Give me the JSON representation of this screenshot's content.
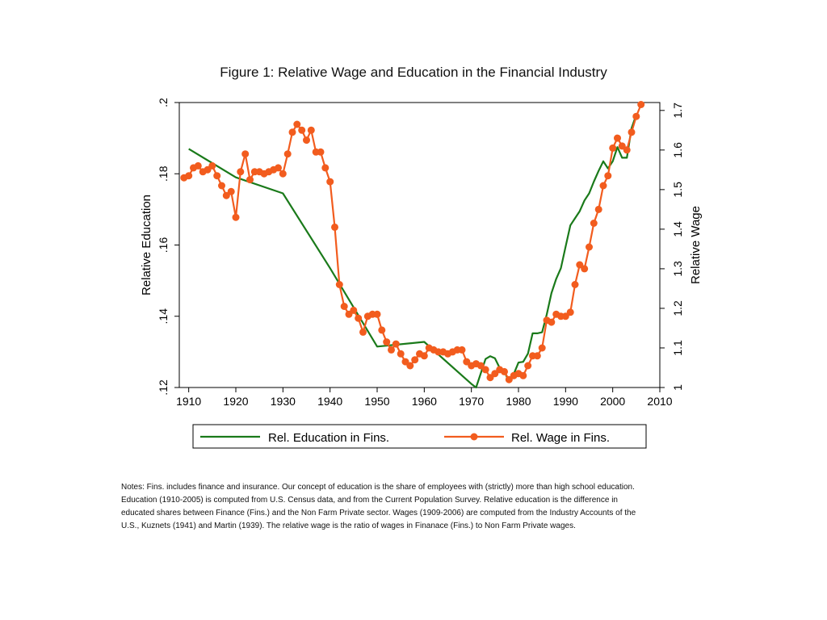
{
  "chart_data": {
    "type": "line",
    "title": "Figure 1: Relative Wage and Education in the Financial Industry",
    "xlabel": "",
    "ylabel_left": "Relative Education",
    "ylabel_right": "Relative Wage",
    "xlim": [
      1908,
      2010
    ],
    "ylim_left": [
      0.12,
      0.2
    ],
    "ylim_right": [
      1.0,
      1.72
    ],
    "x_ticks": [
      1910,
      1920,
      1930,
      1940,
      1950,
      1960,
      1970,
      1980,
      1990,
      2000,
      2010
    ],
    "x_tick_labels": [
      "1910",
      "1920",
      "1930",
      "1940",
      "1950",
      "1960",
      "1970",
      "1980",
      "1990",
      "2000",
      "2010"
    ],
    "y_left_ticks": [
      0.12,
      0.14,
      0.16,
      0.18,
      0.2
    ],
    "y_left_tick_labels": [
      ".12",
      ".14",
      ".16",
      ".18",
      ".2"
    ],
    "y_right_ticks": [
      1.0,
      1.1,
      1.2,
      1.3,
      1.4,
      1.5,
      1.6,
      1.7
    ],
    "y_right_tick_labels": [
      "1",
      "1.1",
      "1.2",
      "1.3",
      "1.4",
      "1.5",
      "1.6",
      "1.7"
    ],
    "grid": false,
    "legend_position": "bottom",
    "series": [
      {
        "name": "Rel. Education in Fins.",
        "axis": "left",
        "color": "#1a7a1a",
        "markers": false,
        "x": [
          1910,
          1920,
          1930,
          1940,
          1945,
          1950,
          1960,
          1970,
          1971,
          1973,
          1974,
          1975,
          1976,
          1977,
          1978,
          1979,
          1980,
          1981,
          1982,
          1983,
          1984,
          1985,
          1986,
          1987,
          1988,
          1989,
          1990,
          1991,
          1992,
          1993,
          1994,
          1995,
          1996,
          1997,
          1998,
          1999,
          2000,
          2001,
          2002,
          2003,
          2004,
          2005
        ],
        "y": [
          0.187,
          0.179,
          0.1745,
          0.1535,
          0.1425,
          0.1315,
          0.1328,
          0.121,
          0.12,
          0.128,
          0.1288,
          0.1282,
          0.1255,
          0.1246,
          0.1215,
          0.1238,
          0.127,
          0.1272,
          0.1295,
          0.1352,
          0.1352,
          0.1355,
          0.1405,
          0.1465,
          0.1505,
          0.1535,
          0.1595,
          0.1655,
          0.1675,
          0.1695,
          0.1725,
          0.1745,
          0.1778,
          0.1808,
          0.1835,
          0.1815,
          0.1835,
          0.1875,
          0.1845,
          0.1845,
          0.1928,
          0.1965
        ]
      },
      {
        "name": "Rel. Wage in Fins.",
        "axis": "right",
        "color": "#f25c1e",
        "markers": true,
        "x": [
          1909,
          1910,
          1911,
          1912,
          1913,
          1914,
          1915,
          1916,
          1917,
          1918,
          1919,
          1920,
          1921,
          1922,
          1923,
          1924,
          1925,
          1926,
          1927,
          1928,
          1929,
          1930,
          1931,
          1932,
          1933,
          1934,
          1935,
          1936,
          1937,
          1938,
          1939,
          1940,
          1941,
          1942,
          1943,
          1944,
          1945,
          1946,
          1947,
          1948,
          1949,
          1950,
          1951,
          1952,
          1953,
          1954,
          1955,
          1956,
          1957,
          1958,
          1959,
          1960,
          1961,
          1962,
          1963,
          1964,
          1965,
          1966,
          1967,
          1968,
          1969,
          1970,
          1971,
          1972,
          1973,
          1974,
          1975,
          1976,
          1977,
          1978,
          1979,
          1980,
          1981,
          1982,
          1983,
          1984,
          1985,
          1986,
          1987,
          1988,
          1989,
          1990,
          1991,
          1992,
          1993,
          1994,
          1995,
          1996,
          1997,
          1998,
          1999,
          2000,
          2001,
          2002,
          2003,
          2004,
          2005,
          2006
        ],
        "y": [
          1.53,
          1.535,
          1.555,
          1.56,
          1.545,
          1.55,
          1.56,
          1.535,
          1.51,
          1.485,
          1.495,
          1.43,
          1.545,
          1.59,
          1.525,
          1.545,
          1.545,
          1.54,
          1.545,
          1.55,
          1.555,
          1.54,
          1.59,
          1.645,
          1.665,
          1.65,
          1.625,
          1.65,
          1.595,
          1.595,
          1.555,
          1.52,
          1.405,
          1.26,
          1.205,
          1.185,
          1.195,
          1.175,
          1.14,
          1.18,
          1.185,
          1.185,
          1.145,
          1.115,
          1.095,
          1.11,
          1.085,
          1.065,
          1.055,
          1.07,
          1.085,
          1.08,
          1.1,
          1.095,
          1.09,
          1.09,
          1.085,
          1.09,
          1.095,
          1.095,
          1.065,
          1.055,
          1.06,
          1.055,
          1.045,
          1.025,
          1.035,
          1.045,
          1.04,
          1.02,
          1.03,
          1.035,
          1.03,
          1.055,
          1.08,
          1.08,
          1.1,
          1.17,
          1.165,
          1.185,
          1.18,
          1.18,
          1.19,
          1.26,
          1.31,
          1.3,
          1.355,
          1.415,
          1.45,
          1.51,
          1.535,
          1.605,
          1.63,
          1.61,
          1.6,
          1.645,
          1.685,
          1.715
        ]
      }
    ],
    "notes": [
      "Notes: Fins. includes finance and insurance. Our concept of education is the share of employees with (strictly) more than high school education.",
      "Education (1910-2005) is computed from U.S. Census data, and from the Current Population Survey. Relative education is the difference in",
      "educated shares between Finance (Fins.) and the Non Farm Private sector. Wages (1909-2006) are computed from the Industry Accounts of the",
      "U.S., Kuznets (1941) and Martin (1939). The relative wage is the ratio of wages in Finanace (Fins.) to Non Farm Private wages."
    ]
  }
}
